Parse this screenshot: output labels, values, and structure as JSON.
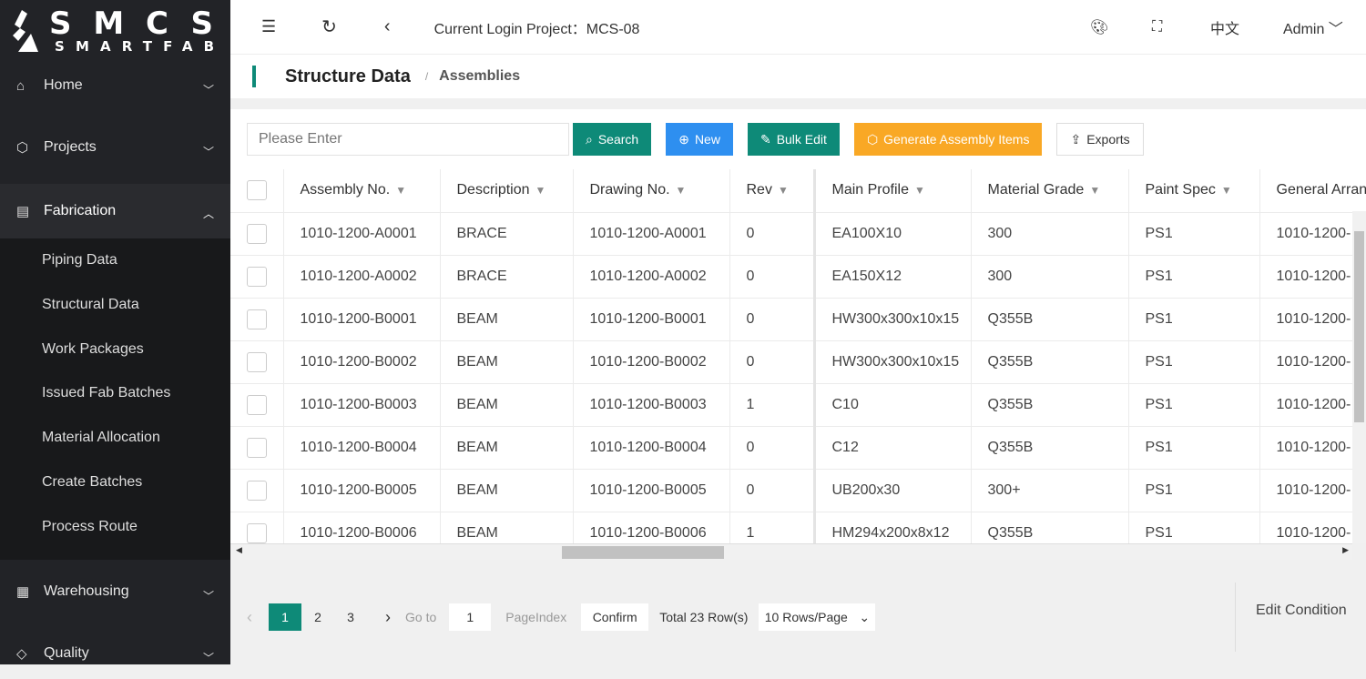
{
  "logo": {
    "top": "SMCS",
    "bottom": "SMARTFAB"
  },
  "sidebar": {
    "items": [
      {
        "label": "Home",
        "icon": "home-icon",
        "expanded": false
      },
      {
        "label": "Projects",
        "icon": "cube-icon",
        "expanded": false
      },
      {
        "label": "Fabrication",
        "icon": "clipboard-icon",
        "expanded": true
      },
      {
        "label": "Warehousing",
        "icon": "grid-icon",
        "expanded": false
      },
      {
        "label": "Quality",
        "icon": "diamond-icon",
        "expanded": false
      }
    ],
    "submenu": [
      "Piping Data",
      "Structural Data",
      "Work Packages",
      "Issued Fab Batches",
      "Material Allocation",
      "Create Batches",
      "Process Route"
    ]
  },
  "header": {
    "project": "Current Login Project：MCS-08",
    "language": "中文",
    "user": "Admin"
  },
  "breadcrumb": {
    "title": "Structure Data",
    "sep": "/",
    "current": "Assemblies"
  },
  "toolbar": {
    "placeholder": "Please Enter",
    "search": "Search",
    "new": "New",
    "bulk_edit": "Bulk Edit",
    "generate": "Generate Assembly Items",
    "exports": "Exports"
  },
  "colors": {
    "teal": "#0e8a78",
    "blue": "#2e8ff0",
    "orange": "#f9a825",
    "sidebar": "#222327"
  },
  "table": {
    "columns": [
      "Assembly No.",
      "Description",
      "Drawing No.",
      "Rev",
      "Main Profile",
      "Material Grade",
      "Paint Spec",
      "General Arran"
    ],
    "rows": [
      [
        "1010-1200-A0001",
        "BRACE",
        "1010-1200-A0001",
        "0",
        "EA100X10",
        "300",
        "PS1",
        "1010-1200-"
      ],
      [
        "1010-1200-A0002",
        "BRACE",
        "1010-1200-A0002",
        "0",
        "EA150X12",
        "300",
        "PS1",
        "1010-1200-"
      ],
      [
        "1010-1200-B0001",
        "BEAM",
        "1010-1200-B0001",
        "0",
        "HW300x300x10x15",
        "Q355B",
        "PS1",
        "1010-1200-"
      ],
      [
        "1010-1200-B0002",
        "BEAM",
        "1010-1200-B0002",
        "0",
        "HW300x300x10x15",
        "Q355B",
        "PS1",
        "1010-1200-"
      ],
      [
        "1010-1200-B0003",
        "BEAM",
        "1010-1200-B0003",
        "1",
        "C10",
        "Q355B",
        "PS1",
        "1010-1200-"
      ],
      [
        "1010-1200-B0004",
        "BEAM",
        "1010-1200-B0004",
        "0",
        "C12",
        "Q355B",
        "PS1",
        "1010-1200-"
      ],
      [
        "1010-1200-B0005",
        "BEAM",
        "1010-1200-B0005",
        "0",
        "UB200x30",
        "300+",
        "PS1",
        "1010-1200-"
      ],
      [
        "1010-1200-B0006",
        "BEAM",
        "1010-1200-B0006",
        "1",
        "HM294x200x8x12",
        "Q355B",
        "PS1",
        "1010-1200-"
      ]
    ]
  },
  "pagination": {
    "pages": [
      "1",
      "2",
      "3"
    ],
    "current": "1",
    "goto_label": "Go to",
    "goto_value": "1",
    "page_index": "PageIndex",
    "confirm": "Confirm",
    "total": "Total 23 Row(s)",
    "page_size": "10 Rows/Page",
    "edit_condition": "Edit Condition"
  }
}
